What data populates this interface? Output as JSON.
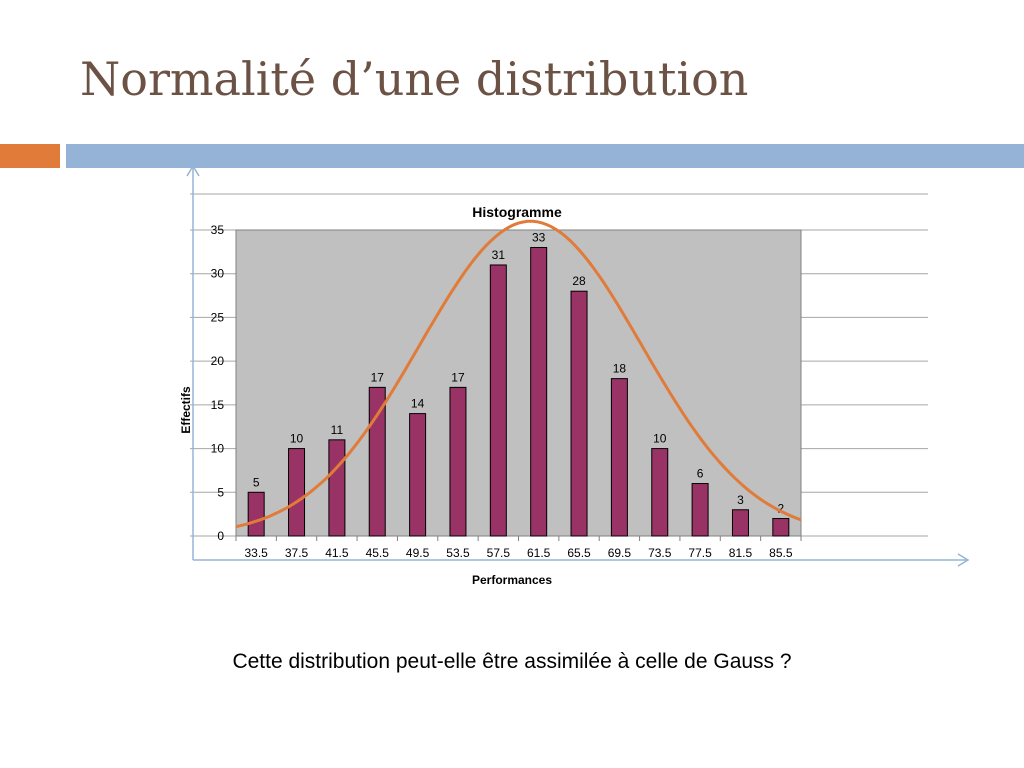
{
  "slide": {
    "title": "Normalité d’une distribution",
    "caption": "Cette distribution peut-elle être assimilée à celle de Gauss ?"
  },
  "colors": {
    "title": "#6b5244",
    "accent_orange": "#e07b39",
    "accent_blue": "#95b3d7",
    "bar_fill": "#993366",
    "plot_bg": "#c0c0c0",
    "curve": "#e07b39"
  },
  "chart_data": {
    "type": "bar",
    "title": "Histogramme",
    "xlabel": "Performances",
    "ylabel": "Effectifs",
    "categories": [
      "33.5",
      "37.5",
      "41.5",
      "45.5",
      "49.5",
      "53.5",
      "57.5",
      "61.5",
      "65.5",
      "69.5",
      "73.5",
      "77.5",
      "81.5",
      "85.5"
    ],
    "values": [
      5,
      10,
      11,
      17,
      14,
      17,
      31,
      33,
      28,
      18,
      10,
      6,
      3,
      2
    ],
    "ylim": [
      0,
      35
    ],
    "yticks": [
      "0",
      "5",
      "10",
      "15",
      "20",
      "25",
      "30",
      "35"
    ],
    "grid": true,
    "legend": "none",
    "overlay": "normal curve"
  }
}
